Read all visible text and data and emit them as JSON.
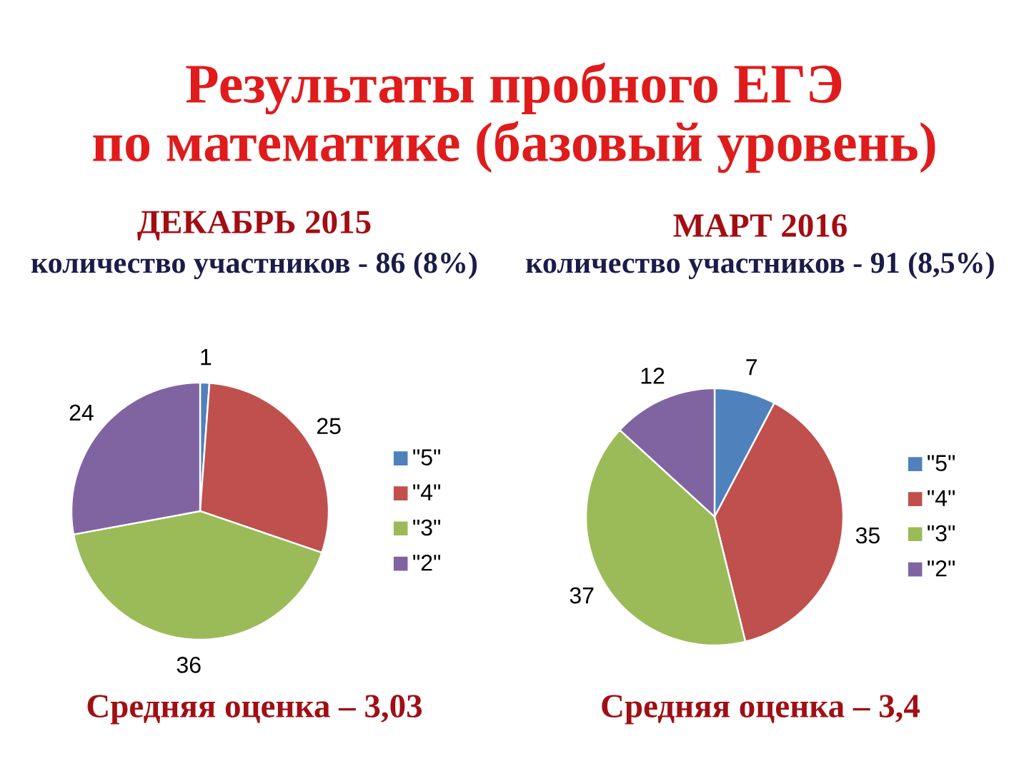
{
  "chart_data": [
    {
      "type": "pie",
      "title": "ДЕКАБРЬ 2015",
      "subtitle": "количество участников - 86 (8%)",
      "annotations": [
        "Результаты пробного ЕГЭ",
        "по математике (базовый уровень)",
        "Средняя оценка – 3,03"
      ],
      "categories": [
        "\"5\"",
        "\"4\"",
        "\"3\"",
        "\"2\""
      ],
      "values": [
        1,
        25,
        36,
        24
      ],
      "colors": [
        "#4f81bd",
        "#c0504d",
        "#9bbb59",
        "#8064a2"
      ],
      "data_labels": true,
      "legend": "right"
    },
    {
      "type": "pie",
      "title": "МАРТ 2016",
      "subtitle": "количество участников -  91 (8,5%)",
      "annotations": [
        "Средняя оценка – 3,4"
      ],
      "categories": [
        "\"5\"",
        "\"4\"",
        "\"3\"",
        "\"2\""
      ],
      "values": [
        7,
        35,
        37,
        12
      ],
      "colors": [
        "#4f81bd",
        "#c0504d",
        "#9bbb59",
        "#8064a2"
      ],
      "data_labels": true,
      "legend": "right"
    }
  ]
}
